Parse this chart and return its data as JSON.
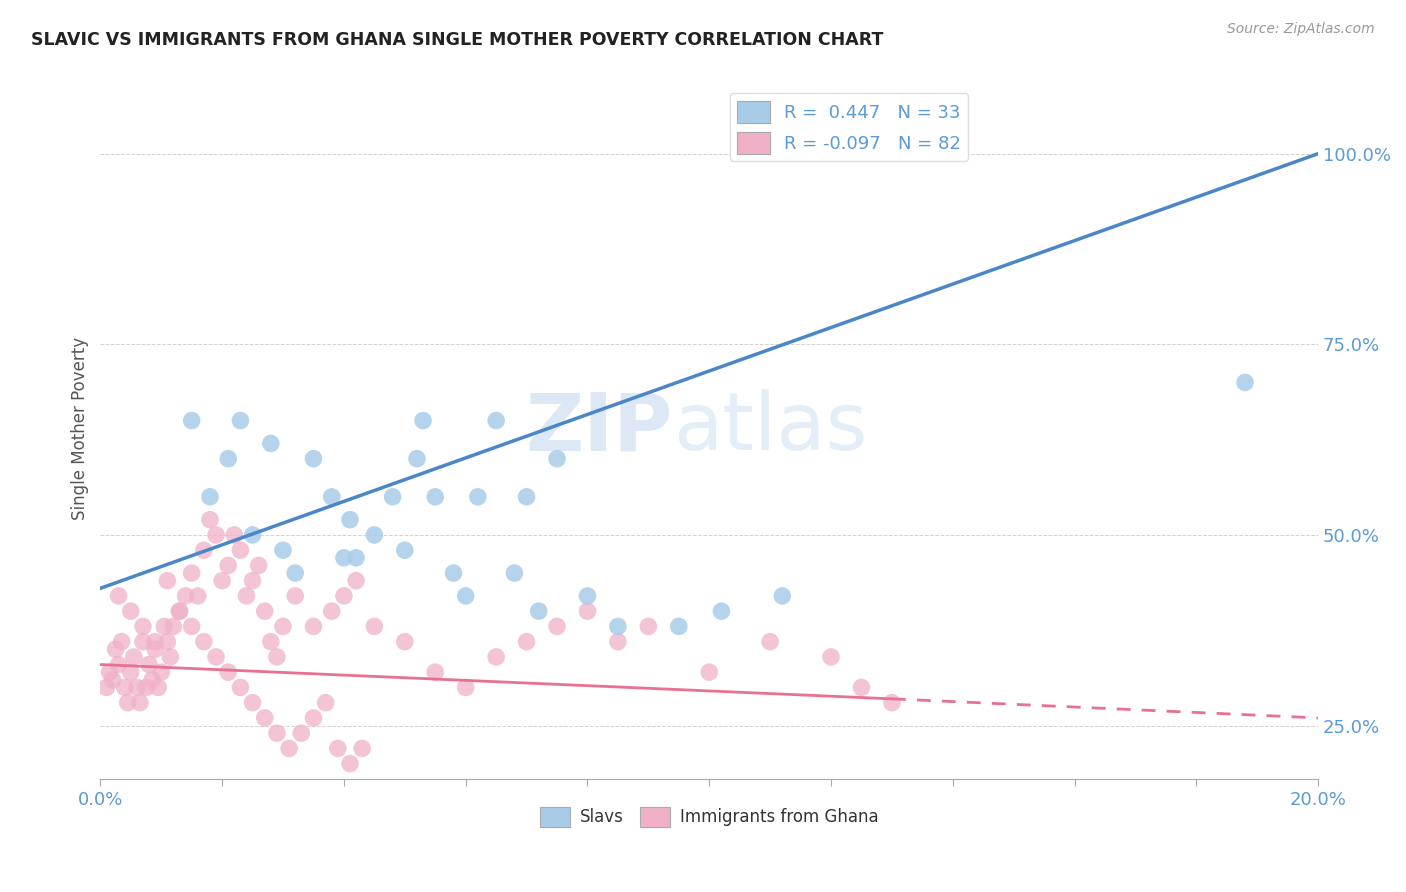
{
  "title": "SLAVIC VS IMMIGRANTS FROM GHANA SINGLE MOTHER POVERTY CORRELATION CHART",
  "source": "Source: ZipAtlas.com",
  "ylabel": "Single Mother Poverty",
  "legend_slavs_R": "0.447",
  "legend_slavs_N": "33",
  "legend_ghana_R": "-0.097",
  "legend_ghana_N": "82",
  "legend_label_slavs": "Slavs",
  "legend_label_ghana": "Immigrants from Ghana",
  "watermark_zip": "ZIP",
  "watermark_atlas": "atlas",
  "blue_color": "#a8cce8",
  "pink_color": "#f0b0c8",
  "blue_line_color": "#4a86c8",
  "pink_line_color": "#e87090",
  "xlim": [
    0.0,
    20.0
  ],
  "ylim": [
    18.0,
    110.0
  ],
  "yticks": [
    25.0,
    50.0,
    75.0,
    100.0
  ],
  "blue_line_x0": 0.0,
  "blue_line_y0": 43.0,
  "blue_line_x1": 20.0,
  "blue_line_y1": 100.0,
  "pink_line_x0": 0.0,
  "pink_line_y0": 33.0,
  "pink_line_x1": 13.0,
  "pink_line_y1": 28.5,
  "pink_dash_x0": 13.0,
  "pink_dash_y0": 28.5,
  "pink_dash_x1": 20.0,
  "pink_dash_y1": 26.0,
  "slavs_x": [
    1.5,
    2.1,
    2.3,
    2.8,
    3.2,
    3.5,
    3.8,
    4.0,
    4.2,
    4.5,
    4.8,
    5.0,
    5.2,
    5.5,
    5.8,
    6.0,
    6.2,
    6.5,
    7.0,
    7.5,
    8.0,
    8.5,
    9.5,
    10.2,
    11.2,
    18.8,
    3.0,
    4.1,
    5.3,
    6.8,
    2.5,
    1.8,
    7.2
  ],
  "slavs_y": [
    65.0,
    60.0,
    65.0,
    62.0,
    45.0,
    60.0,
    55.0,
    47.0,
    47.0,
    50.0,
    55.0,
    48.0,
    60.0,
    55.0,
    45.0,
    42.0,
    55.0,
    65.0,
    55.0,
    60.0,
    42.0,
    38.0,
    38.0,
    40.0,
    42.0,
    70.0,
    48.0,
    52.0,
    65.0,
    45.0,
    50.0,
    55.0,
    40.0
  ],
  "ghana_x": [
    0.1,
    0.15,
    0.2,
    0.25,
    0.3,
    0.35,
    0.4,
    0.45,
    0.5,
    0.55,
    0.6,
    0.65,
    0.7,
    0.75,
    0.8,
    0.85,
    0.9,
    0.95,
    1.0,
    1.05,
    1.1,
    1.15,
    1.2,
    1.3,
    1.4,
    1.5,
    1.6,
    1.7,
    1.8,
    1.9,
    2.0,
    2.1,
    2.2,
    2.3,
    2.4,
    2.5,
    2.6,
    2.7,
    2.8,
    2.9,
    3.0,
    3.2,
    3.5,
    3.8,
    4.0,
    4.2,
    4.5,
    5.0,
    5.5,
    6.0,
    6.5,
    7.0,
    7.5,
    8.0,
    8.5,
    9.0,
    10.0,
    11.0,
    12.0,
    12.5,
    13.0,
    0.3,
    0.5,
    0.7,
    0.9,
    1.1,
    1.3,
    1.5,
    1.7,
    1.9,
    2.1,
    2.3,
    2.5,
    2.7,
    2.9,
    3.1,
    3.3,
    3.5,
    3.7,
    3.9,
    4.1,
    4.3
  ],
  "ghana_y": [
    30.0,
    32.0,
    31.0,
    35.0,
    33.0,
    36.0,
    30.0,
    28.0,
    32.0,
    34.0,
    30.0,
    28.0,
    36.0,
    30.0,
    33.0,
    31.0,
    35.0,
    30.0,
    32.0,
    38.0,
    36.0,
    34.0,
    38.0,
    40.0,
    42.0,
    45.0,
    42.0,
    48.0,
    52.0,
    50.0,
    44.0,
    46.0,
    50.0,
    48.0,
    42.0,
    44.0,
    46.0,
    40.0,
    36.0,
    34.0,
    38.0,
    42.0,
    38.0,
    40.0,
    42.0,
    44.0,
    38.0,
    36.0,
    32.0,
    30.0,
    34.0,
    36.0,
    38.0,
    40.0,
    36.0,
    38.0,
    32.0,
    36.0,
    34.0,
    30.0,
    28.0,
    42.0,
    40.0,
    38.0,
    36.0,
    44.0,
    40.0,
    38.0,
    36.0,
    34.0,
    32.0,
    30.0,
    28.0,
    26.0,
    24.0,
    22.0,
    24.0,
    26.0,
    28.0,
    22.0,
    20.0,
    22.0
  ]
}
